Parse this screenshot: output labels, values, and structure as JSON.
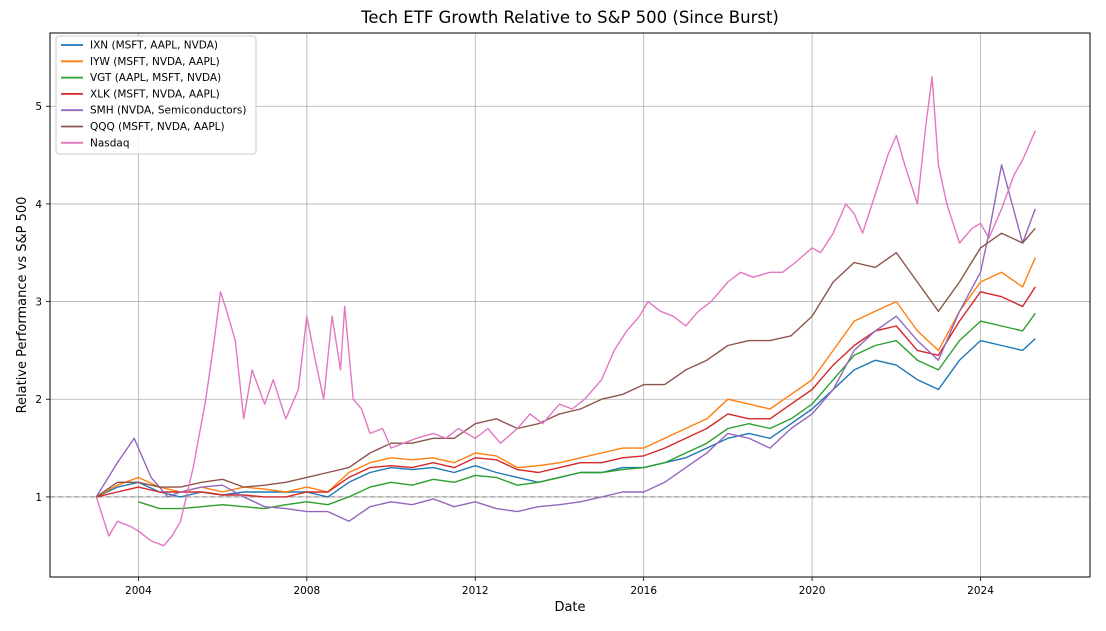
{
  "chart_data": {
    "type": "line",
    "title": "Tech ETF Growth Relative to S&P 500 (Since Burst)",
    "xlabel": "Date",
    "ylabel": "Relative Performance vs S&P 500",
    "xlim": [
      2001.9,
      2026.6
    ],
    "ylim": [
      0.18,
      5.75
    ],
    "x_ticks": [
      2004,
      2008,
      2012,
      2016,
      2020,
      2024
    ],
    "y_ticks": [
      1,
      2,
      3,
      4,
      5
    ],
    "grid": true,
    "legend_position": "top-left",
    "reference_line": {
      "y": 1,
      "style": "dashed",
      "color": "#888888"
    },
    "series": [
      {
        "name": "IXN (MSFT, AAPL, NVDA)",
        "color": "#1f77b4",
        "x": [
          2003.0,
          2003.5,
          2004.0,
          2004.5,
          2005.0,
          2005.5,
          2006.0,
          2006.5,
          2007.0,
          2007.5,
          2008.0,
          2008.5,
          2009.0,
          2009.5,
          2010.0,
          2010.5,
          2011.0,
          2011.5,
          2012.0,
          2012.5,
          2013.0,
          2013.5,
          2014.0,
          2014.5,
          2015.0,
          2015.5,
          2016.0,
          2016.5,
          2017.0,
          2017.5,
          2018.0,
          2018.5,
          2019.0,
          2019.5,
          2020.0,
          2020.5,
          2021.0,
          2021.5,
          2022.0,
          2022.5,
          2023.0,
          2023.5,
          2024.0,
          2024.5,
          2025.0,
          2025.3
        ],
        "y": [
          1.0,
          1.1,
          1.15,
          1.05,
          1.0,
          1.05,
          1.02,
          1.05,
          1.05,
          1.05,
          1.05,
          1.0,
          1.15,
          1.25,
          1.3,
          1.28,
          1.3,
          1.25,
          1.32,
          1.25,
          1.2,
          1.15,
          1.2,
          1.25,
          1.25,
          1.3,
          1.3,
          1.35,
          1.4,
          1.5,
          1.6,
          1.65,
          1.6,
          1.75,
          1.9,
          2.1,
          2.3,
          2.4,
          2.35,
          2.2,
          2.1,
          2.4,
          2.6,
          2.55,
          2.5,
          2.62
        ]
      },
      {
        "name": "IYW (MSFT, NVDA, AAPL)",
        "color": "#ff7f0e",
        "x": [
          2003.0,
          2003.5,
          2004.0,
          2004.5,
          2005.0,
          2005.5,
          2006.0,
          2006.5,
          2007.0,
          2007.5,
          2008.0,
          2008.5,
          2009.0,
          2009.5,
          2010.0,
          2010.5,
          2011.0,
          2011.5,
          2012.0,
          2012.5,
          2013.0,
          2013.5,
          2014.0,
          2014.5,
          2015.0,
          2015.5,
          2016.0,
          2016.5,
          2017.0,
          2017.5,
          2018.0,
          2018.5,
          2019.0,
          2019.5,
          2020.0,
          2020.5,
          2021.0,
          2021.5,
          2022.0,
          2022.5,
          2023.0,
          2023.5,
          2024.0,
          2024.5,
          2025.0,
          2025.3
        ],
        "y": [
          1.0,
          1.12,
          1.2,
          1.1,
          1.05,
          1.1,
          1.05,
          1.1,
          1.08,
          1.05,
          1.1,
          1.05,
          1.25,
          1.35,
          1.4,
          1.38,
          1.4,
          1.35,
          1.45,
          1.42,
          1.3,
          1.32,
          1.35,
          1.4,
          1.45,
          1.5,
          1.5,
          1.6,
          1.7,
          1.8,
          2.0,
          1.95,
          1.9,
          2.05,
          2.2,
          2.5,
          2.8,
          2.9,
          3.0,
          2.7,
          2.5,
          2.9,
          3.2,
          3.3,
          3.15,
          3.45
        ]
      },
      {
        "name": "VGT (AAPL, MSFT, NVDA)",
        "color": "#2ca02c",
        "x": [
          2004.0,
          2004.5,
          2005.0,
          2005.5,
          2006.0,
          2006.5,
          2007.0,
          2007.5,
          2008.0,
          2008.5,
          2009.0,
          2009.5,
          2010.0,
          2010.5,
          2011.0,
          2011.5,
          2012.0,
          2012.5,
          2013.0,
          2013.5,
          2014.0,
          2014.5,
          2015.0,
          2015.5,
          2016.0,
          2016.5,
          2017.0,
          2017.5,
          2018.0,
          2018.5,
          2019.0,
          2019.5,
          2020.0,
          2020.5,
          2021.0,
          2021.5,
          2022.0,
          2022.5,
          2023.0,
          2023.5,
          2024.0,
          2024.5,
          2025.0,
          2025.3
        ],
        "y": [
          0.95,
          0.88,
          0.88,
          0.9,
          0.92,
          0.9,
          0.88,
          0.92,
          0.95,
          0.92,
          1.0,
          1.1,
          1.15,
          1.12,
          1.18,
          1.15,
          1.22,
          1.2,
          1.12,
          1.15,
          1.2,
          1.25,
          1.25,
          1.28,
          1.3,
          1.35,
          1.45,
          1.55,
          1.7,
          1.75,
          1.7,
          1.8,
          1.95,
          2.2,
          2.45,
          2.55,
          2.6,
          2.4,
          2.3,
          2.6,
          2.8,
          2.75,
          2.7,
          2.88
        ]
      },
      {
        "name": "XLK (MSFT, NVDA, AAPL)",
        "color": "#d62728",
        "x": [
          2003.0,
          2003.5,
          2004.0,
          2004.5,
          2005.0,
          2005.5,
          2006.0,
          2006.5,
          2007.0,
          2007.5,
          2008.0,
          2008.5,
          2009.0,
          2009.5,
          2010.0,
          2010.5,
          2011.0,
          2011.5,
          2012.0,
          2012.5,
          2013.0,
          2013.5,
          2014.0,
          2014.5,
          2015.0,
          2015.5,
          2016.0,
          2016.5,
          2017.0,
          2017.5,
          2018.0,
          2018.5,
          2019.0,
          2019.5,
          2020.0,
          2020.5,
          2021.0,
          2021.5,
          2022.0,
          2022.5,
          2023.0,
          2023.5,
          2024.0,
          2024.5,
          2025.0,
          2025.3
        ],
        "y": [
          1.0,
          1.05,
          1.1,
          1.05,
          1.05,
          1.05,
          1.02,
          1.02,
          1.0,
          1.0,
          1.05,
          1.05,
          1.2,
          1.3,
          1.32,
          1.3,
          1.35,
          1.3,
          1.4,
          1.38,
          1.28,
          1.25,
          1.3,
          1.35,
          1.35,
          1.4,
          1.42,
          1.5,
          1.6,
          1.7,
          1.85,
          1.8,
          1.8,
          1.95,
          2.1,
          2.35,
          2.55,
          2.7,
          2.75,
          2.5,
          2.45,
          2.8,
          3.1,
          3.05,
          2.95,
          3.15
        ]
      },
      {
        "name": "SMH (NVDA, Semiconductors)",
        "color": "#9467bd",
        "x": [
          2003.0,
          2003.5,
          2003.9,
          2004.3,
          2004.7,
          2005.0,
          2005.5,
          2006.0,
          2006.5,
          2007.0,
          2007.5,
          2008.0,
          2008.5,
          2009.0,
          2009.5,
          2010.0,
          2010.5,
          2011.0,
          2011.5,
          2012.0,
          2012.5,
          2013.0,
          2013.5,
          2014.0,
          2014.5,
          2015.0,
          2015.5,
          2016.0,
          2016.5,
          2017.0,
          2017.5,
          2018.0,
          2018.5,
          2019.0,
          2019.5,
          2020.0,
          2020.5,
          2021.0,
          2021.5,
          2022.0,
          2022.5,
          2023.0,
          2023.5,
          2024.0,
          2024.2,
          2024.5,
          2025.0,
          2025.3
        ],
        "y": [
          1.0,
          1.35,
          1.6,
          1.2,
          1.0,
          1.05,
          1.1,
          1.12,
          1.0,
          0.9,
          0.88,
          0.85,
          0.85,
          0.75,
          0.9,
          0.95,
          0.92,
          0.98,
          0.9,
          0.95,
          0.88,
          0.85,
          0.9,
          0.92,
          0.95,
          1.0,
          1.05,
          1.05,
          1.15,
          1.3,
          1.45,
          1.65,
          1.6,
          1.5,
          1.7,
          1.85,
          2.1,
          2.5,
          2.7,
          2.85,
          2.6,
          2.4,
          2.9,
          3.3,
          3.7,
          4.4,
          3.6,
          3.95
        ]
      },
      {
        "name": "QQQ (MSFT, NVDA, AAPL)",
        "color": "#8c564b",
        "x": [
          2003.0,
          2003.5,
          2004.0,
          2004.5,
          2005.0,
          2005.5,
          2006.0,
          2006.5,
          2007.0,
          2007.5,
          2008.0,
          2008.5,
          2009.0,
          2009.5,
          2010.0,
          2010.5,
          2011.0,
          2011.5,
          2012.0,
          2012.5,
          2013.0,
          2013.5,
          2014.0,
          2014.5,
          2015.0,
          2015.5,
          2016.0,
          2016.5,
          2017.0,
          2017.5,
          2018.0,
          2018.5,
          2019.0,
          2019.5,
          2020.0,
          2020.5,
          2021.0,
          2021.5,
          2022.0,
          2022.5,
          2023.0,
          2023.5,
          2024.0,
          2024.5,
          2025.0,
          2025.3
        ],
        "y": [
          1.0,
          1.15,
          1.15,
          1.1,
          1.1,
          1.15,
          1.18,
          1.1,
          1.12,
          1.15,
          1.2,
          1.25,
          1.3,
          1.45,
          1.55,
          1.55,
          1.6,
          1.6,
          1.75,
          1.8,
          1.7,
          1.75,
          1.85,
          1.9,
          2.0,
          2.05,
          2.15,
          2.15,
          2.3,
          2.4,
          2.55,
          2.6,
          2.6,
          2.65,
          2.85,
          3.2,
          3.4,
          3.35,
          3.5,
          3.2,
          2.9,
          3.2,
          3.55,
          3.7,
          3.6,
          3.75
        ]
      },
      {
        "name": "Nasdaq",
        "color": "#e377c2",
        "x": [
          2003.0,
          2003.3,
          2003.5,
          2003.8,
          2004.0,
          2004.3,
          2004.6,
          2004.8,
          2005.0,
          2005.3,
          2005.6,
          2005.8,
          2005.95,
          2006.1,
          2006.3,
          2006.5,
          2006.7,
          2007.0,
          2007.2,
          2007.5,
          2007.8,
          2008.0,
          2008.2,
          2008.4,
          2008.6,
          2008.8,
          2008.9,
          2009.1,
          2009.3,
          2009.5,
          2009.8,
          2010.0,
          2010.3,
          2010.6,
          2011.0,
          2011.3,
          2011.6,
          2012.0,
          2012.3,
          2012.6,
          2013.0,
          2013.3,
          2013.6,
          2014.0,
          2014.3,
          2014.6,
          2015.0,
          2015.3,
          2015.6,
          2015.9,
          2016.1,
          2016.4,
          2016.7,
          2017.0,
          2017.3,
          2017.6,
          2018.0,
          2018.3,
          2018.6,
          2019.0,
          2019.3,
          2019.6,
          2020.0,
          2020.2,
          2020.5,
          2020.8,
          2021.0,
          2021.2,
          2021.5,
          2021.8,
          2022.0,
          2022.2,
          2022.5,
          2022.7,
          2022.85,
          2023.0,
          2023.2,
          2023.5,
          2023.8,
          2024.0,
          2024.2,
          2024.5,
          2024.8,
          2025.0,
          2025.3
        ],
        "y": [
          1.0,
          0.6,
          0.75,
          0.7,
          0.65,
          0.55,
          0.5,
          0.6,
          0.75,
          1.3,
          2.0,
          2.6,
          3.1,
          2.9,
          2.6,
          1.8,
          2.3,
          1.95,
          2.2,
          1.8,
          2.1,
          2.85,
          2.4,
          2.0,
          2.85,
          2.3,
          2.95,
          2.0,
          1.9,
          1.65,
          1.7,
          1.5,
          1.55,
          1.6,
          1.65,
          1.6,
          1.7,
          1.6,
          1.7,
          1.55,
          1.7,
          1.85,
          1.75,
          1.95,
          1.9,
          2.0,
          2.2,
          2.5,
          2.7,
          2.85,
          3.0,
          2.9,
          2.85,
          2.75,
          2.9,
          3.0,
          3.2,
          3.3,
          3.25,
          3.3,
          3.3,
          3.4,
          3.55,
          3.5,
          3.7,
          4.0,
          3.9,
          3.7,
          4.1,
          4.5,
          4.7,
          4.4,
          4.0,
          4.8,
          5.3,
          4.4,
          4.0,
          3.6,
          3.75,
          3.8,
          3.65,
          3.95,
          4.3,
          4.45,
          4.75
        ]
      }
    ]
  }
}
